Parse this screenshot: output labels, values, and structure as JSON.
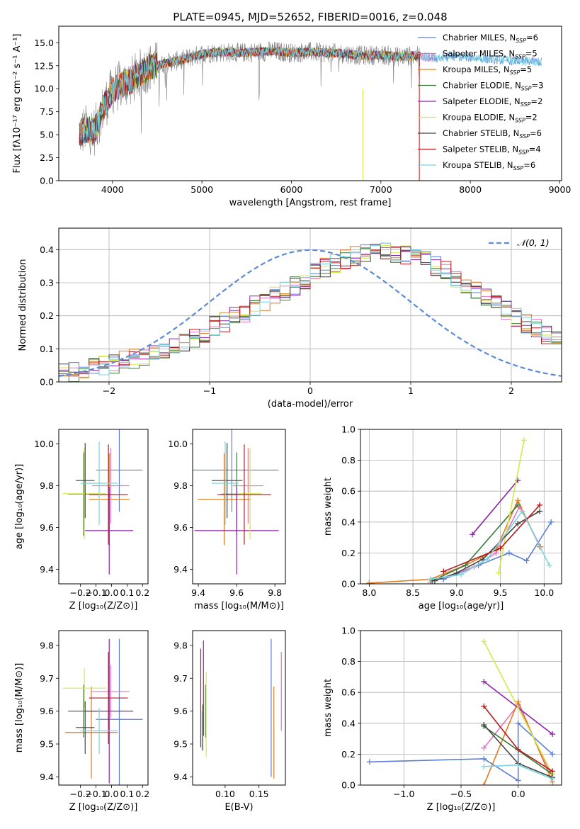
{
  "figure_title": "PLATE=0945, MJD=52652, FIBERID=0016, z=0.048",
  "colors": {
    "Chabrier MILES": "#5b7fd6",
    "Salpeter MILES": "#e377c2",
    "Kroupa MILES": "#e07b22",
    "Chabrier ELODIE": "#3a7d3a",
    "Salpeter ELODIE": "#8e24aa",
    "Kroupa ELODIE": "#d4e84a",
    "Chabrier STELIB": "#444444",
    "Salpeter STELIB": "#b71c1c",
    "Kroupa STELIB": "#77d4e0",
    "data": "#7f7f7f",
    "normal": "#5b8bd6"
  },
  "chart_data": [
    {
      "id": "spectrum",
      "type": "line",
      "title": "PLATE=0945, MJD=52652, FIBERID=0016, z=0.048",
      "xlabel": "wavelength [Angstrom, rest frame]",
      "ylabel": "Flux [fλ10⁻¹⁷ erg cm⁻² s⁻¹ A⁻¹]",
      "xlim": [
        3400,
        9020
      ],
      "ylim": [
        0,
        16.8
      ],
      "xticks": [
        4000,
        5000,
        6000,
        7000,
        8000,
        9000
      ],
      "yticks": [
        0.0,
        2.5,
        5.0,
        7.5,
        10.0,
        12.5,
        15.0
      ],
      "legend_position": "top-right",
      "legend": [
        {
          "name": "Chabrier MILES",
          "nssp": "6"
        },
        {
          "name": "Salpeter MILES",
          "nssp": "5"
        },
        {
          "name": "Kroupa MILES",
          "nssp": "5"
        },
        {
          "name": "Chabrier ELODIE",
          "nssp": "3"
        },
        {
          "name": "Salpeter ELODIE",
          "nssp": "2"
        },
        {
          "name": "Kroupa ELODIE",
          "nssp": "2"
        },
        {
          "name": "Chabrier STELIB",
          "nssp": "6"
        },
        {
          "name": "Salpeter STELIB",
          "nssp": "4"
        },
        {
          "name": "Kroupa STELIB",
          "nssp": "6"
        }
      ],
      "continuum_trend": {
        "x": [
          3650,
          3700,
          3800,
          3900,
          4000,
          4100,
          4200,
          4300,
          4400,
          4500,
          4600,
          4800,
          5000,
          5200,
          5400,
          5600,
          5800,
          6000,
          6200,
          6400,
          6600,
          6800,
          7000,
          7200,
          7400,
          7600,
          7800,
          8000,
          8200,
          8400,
          8600,
          8800
        ],
        "y": [
          5.2,
          5.6,
          5.4,
          8.0,
          9.8,
          10.5,
          10.8,
          11.6,
          12.3,
          12.5,
          12.8,
          13.2,
          13.8,
          14.0,
          13.9,
          14.0,
          14.1,
          13.9,
          14.0,
          13.9,
          13.8,
          13.6,
          13.7,
          13.5,
          13.6,
          13.3,
          13.5,
          13.4,
          13.2,
          13.1,
          13.0,
          12.9
        ]
      },
      "data_range": [
        3630,
        7440
      ]
    },
    {
      "id": "residuals",
      "type": "bar",
      "xlabel": "(data-model)/error",
      "ylabel": "Normed distribution",
      "xlim": [
        -2.5,
        2.5
      ],
      "ylim": [
        0,
        0.465
      ],
      "xticks": [
        -2,
        -1,
        0,
        1,
        2
      ],
      "yticks": [
        0.0,
        0.1,
        0.2,
        0.3,
        0.4
      ],
      "grid": true,
      "legend_position": "top-right",
      "legend": [
        "𝒩(0, 1)"
      ],
      "bin_width": 0.1,
      "bin_start": -2.5,
      "envelope": [
        0.025,
        0.03,
        0.035,
        0.045,
        0.05,
        0.055,
        0.065,
        0.07,
        0.08,
        0.09,
        0.1,
        0.11,
        0.12,
        0.135,
        0.15,
        0.17,
        0.18,
        0.2,
        0.21,
        0.23,
        0.245,
        0.26,
        0.275,
        0.29,
        0.31,
        0.33,
        0.345,
        0.36,
        0.37,
        0.38,
        0.385,
        0.39,
        0.395,
        0.39,
        0.385,
        0.375,
        0.365,
        0.35,
        0.335,
        0.315,
        0.295,
        0.275,
        0.255,
        0.235,
        0.215,
        0.195,
        0.175,
        0.16,
        0.145,
        0.13
      ]
    },
    {
      "id": "age-vs-Z",
      "type": "scatter",
      "xlabel": "Z [log₁₀(Z/Z⊙)]",
      "ylabel": "age  [log₁₀(age/yr)]",
      "xlim": [
        -0.34,
        0.235
      ],
      "ylim": [
        9.33,
        10.07
      ],
      "xticks": [
        -0.2,
        -0.1,
        0.0,
        0.1,
        0.2
      ],
      "yticks": [
        9.4,
        9.6,
        9.8,
        10.0
      ],
      "points": [
        {
          "x": 0.05,
          "xerr": 0.15,
          "y": 9.875,
          "yerr": 0.2
        },
        {
          "x": -0.005,
          "xerr": 0.12,
          "y": 9.8,
          "yerr": 0.18
        },
        {
          "x": -0.015,
          "xerr": 0.13,
          "y": 9.735,
          "yerr": 0.22
        },
        {
          "x": -0.18,
          "xerr": 0.1,
          "y": 9.76,
          "yerr": 0.2
        },
        {
          "x": -0.015,
          "xerr": 0.155,
          "y": 9.585,
          "yerr": 0.21
        },
        {
          "x": -0.175,
          "xerr": 0.14,
          "y": 9.762,
          "yerr": 0.22
        },
        {
          "x": -0.17,
          "xerr": 0.06,
          "y": 9.825,
          "yerr": 0.18
        },
        {
          "x": -0.02,
          "xerr": 0.125,
          "y": 9.758,
          "yerr": 0.24
        },
        {
          "x": -0.08,
          "xerr": 0.12,
          "y": 9.812,
          "yerr": 0.2
        }
      ]
    },
    {
      "id": "age-vs-mass",
      "type": "scatter",
      "xlabel": "mass [log₁₀(M/M⊙)]",
      "ylabel": "",
      "xlim": [
        9.37,
        9.855
      ],
      "ylim": [
        9.33,
        10.07
      ],
      "xticks": [
        9.4,
        9.6,
        9.8
      ],
      "yticks": [
        9.4,
        9.6,
        9.8,
        10.0
      ],
      "points": [
        {
          "x": 9.575,
          "xerr": 0.245,
          "y": 9.875,
          "yerr": 0.2
        },
        {
          "x": 9.66,
          "xerr": 0.08,
          "y": 9.8,
          "yerr": 0.18
        },
        {
          "x": 9.535,
          "xerr": 0.14,
          "y": 9.735,
          "yerr": 0.22
        },
        {
          "x": 9.6,
          "xerr": 0.08,
          "y": 9.76,
          "yerr": 0.2
        },
        {
          "x": 9.6,
          "xerr": 0.22,
          "y": 9.585,
          "yerr": 0.21
        },
        {
          "x": 9.67,
          "xerr": 0.06,
          "y": 9.762,
          "yerr": 0.22
        },
        {
          "x": 9.55,
          "xerr": 0.08,
          "y": 9.825,
          "yerr": 0.18
        },
        {
          "x": 9.64,
          "xerr": 0.14,
          "y": 9.758,
          "yerr": 0.24
        },
        {
          "x": 9.54,
          "xerr": 0.07,
          "y": 9.812,
          "yerr": 0.2
        }
      ]
    },
    {
      "id": "weight-vs-age",
      "type": "line",
      "xlabel": "age  [log₁₀(age/yr)]",
      "ylabel": "mass weight",
      "xlim": [
        7.9,
        10.2
      ],
      "ylim": [
        0,
        1.0
      ],
      "xticks": [
        8.0,
        8.5,
        9.0,
        9.5,
        10.0
      ],
      "yticks": [
        0.0,
        0.2,
        0.4,
        0.6,
        0.8,
        1.0
      ],
      "grid": true,
      "series": [
        {
          "x": [
            8.85,
            9.25,
            9.6,
            9.8,
            10.08
          ],
          "y": [
            0.03,
            0.12,
            0.2,
            0.15,
            0.4
          ]
        },
        {
          "x": [
            8.7,
            9.2,
            9.45,
            9.72,
            9.96
          ],
          "y": [
            0.01,
            0.11,
            0.2,
            0.5,
            0.24
          ]
        },
        {
          "x": [
            8.0,
            8.7,
            9.1,
            9.45,
            9.7,
            9.95
          ],
          "y": [
            0.005,
            0.03,
            0.12,
            0.22,
            0.54,
            0.24
          ]
        },
        {
          "x": [
            8.72,
            9.1,
            9.7
          ],
          "y": [
            0.02,
            0.12,
            0.51
          ]
        },
        {
          "x": [
            9.18,
            9.7
          ],
          "y": [
            0.32,
            0.67
          ]
        },
        {
          "x": [
            9.48,
            9.77
          ],
          "y": [
            0.07,
            0.93
          ]
        },
        {
          "x": [
            8.75,
            9.0,
            9.3,
            9.7,
            9.95
          ],
          "y": [
            0.02,
            0.07,
            0.16,
            0.39,
            0.47
          ]
        },
        {
          "x": [
            8.85,
            9.5,
            9.95
          ],
          "y": [
            0.08,
            0.23,
            0.51
          ]
        },
        {
          "x": [
            8.7,
            9.05,
            9.35,
            9.75,
            10.06
          ],
          "y": [
            0.03,
            0.06,
            0.16,
            0.47,
            0.12
          ]
        }
      ]
    },
    {
      "id": "mass-vs-Z",
      "type": "scatter",
      "xlabel": "Z [log₁₀(Z/Z⊙)]",
      "ylabel": "mass [log₁₀(M/M⊙)]",
      "xlim": [
        -0.34,
        0.235
      ],
      "ylim": [
        9.375,
        9.845
      ],
      "xticks": [
        -0.2,
        -0.1,
        0.0,
        0.1,
        0.2
      ],
      "yticks": [
        9.4,
        9.5,
        9.6,
        9.7,
        9.8
      ],
      "points": [
        {
          "x": 0.05,
          "xerr": 0.15,
          "y": 9.575,
          "yerr": 0.245
        },
        {
          "x": -0.005,
          "xerr": 0.12,
          "y": 9.66,
          "yerr": 0.08
        },
        {
          "x": -0.13,
          "xerr": 0.17,
          "y": 9.535,
          "yerr": 0.14
        },
        {
          "x": -0.18,
          "xerr": 0.1,
          "y": 9.6,
          "yerr": 0.08
        },
        {
          "x": -0.015,
          "xerr": 0.155,
          "y": 9.6,
          "yerr": 0.22
        },
        {
          "x": -0.175,
          "xerr": 0.14,
          "y": 9.67,
          "yerr": 0.06
        },
        {
          "x": -0.17,
          "xerr": 0.06,
          "y": 9.55,
          "yerr": 0.08
        },
        {
          "x": -0.02,
          "xerr": 0.125,
          "y": 9.64,
          "yerr": 0.14
        },
        {
          "x": -0.08,
          "xerr": 0.12,
          "y": 9.54,
          "yerr": 0.07
        }
      ]
    },
    {
      "id": "mass-vs-ebv",
      "type": "scatter",
      "xlabel": "E(B-V)",
      "ylabel": "",
      "xlim": [
        0.052,
        0.189
      ],
      "ylim": [
        9.375,
        9.845
      ],
      "xticks": [
        0.1,
        0.15
      ],
      "yticks": [
        9.4,
        9.5,
        9.6,
        9.7,
        9.8
      ],
      "points": [
        {
          "x": 0.168,
          "y": 9.61,
          "yerr": 0.21
        },
        {
          "x": 0.183,
          "y": 9.66,
          "yerr": 0.12
        },
        {
          "x": 0.172,
          "y": 9.535,
          "yerr": 0.14
        },
        {
          "x": 0.071,
          "y": 9.6,
          "yerr": 0.08
        },
        {
          "x": 0.068,
          "y": 9.67,
          "yerr": 0.145
        },
        {
          "x": 0.072,
          "y": 9.59,
          "yerr": 0.13
        },
        {
          "x": 0.067,
          "y": 9.55,
          "yerr": 0.07
        },
        {
          "x": 0.064,
          "y": 9.64,
          "yerr": 0.15
        },
        {
          "x": 0.066,
          "y": 9.54,
          "yerr": 0.06
        }
      ]
    },
    {
      "id": "weight-vs-Z",
      "type": "line",
      "xlabel": "Z [log₁₀(Z/Z⊙)]",
      "ylabel": "mass weight",
      "xlim": [
        -1.38,
        0.38
      ],
      "ylim": [
        0,
        1.0
      ],
      "xticks": [
        -1.0,
        -0.5,
        0.0
      ],
      "yticks": [
        0.0,
        0.2,
        0.4,
        0.6,
        0.8,
        1.0
      ],
      "grid": true,
      "series": [
        {
          "x": [
            -1.3,
            -0.3,
            0.0,
            0.0,
            0.3
          ],
          "y": [
            0.15,
            0.17,
            0.03,
            0.4,
            0.2
          ]
        },
        {
          "x": [
            -0.3,
            0.0,
            0.3
          ],
          "y": [
            0.24,
            0.52,
            0.05
          ]
        },
        {
          "x": [
            -0.3,
            0.0,
            0.3
          ],
          "y": [
            0.0,
            0.54,
            0.02
          ]
        },
        {
          "x": [
            -0.3,
            0.3
          ],
          "y": [
            0.38,
            0.07
          ]
        },
        {
          "x": [
            -0.3,
            0.3
          ],
          "y": [
            0.67,
            0.33
          ]
        },
        {
          "x": [
            -0.3,
            0.3
          ],
          "y": [
            0.93,
            0.07
          ]
        },
        {
          "x": [
            -0.3,
            0.0,
            0.3
          ],
          "y": [
            0.39,
            0.14,
            0.05
          ]
        },
        {
          "x": [
            -0.3,
            0.0,
            0.3
          ],
          "y": [
            0.51,
            0.23,
            0.09
          ]
        },
        {
          "x": [
            -0.3,
            0.0,
            0.3
          ],
          "y": [
            0.12,
            0.13,
            0.04
          ]
        }
      ]
    }
  ]
}
